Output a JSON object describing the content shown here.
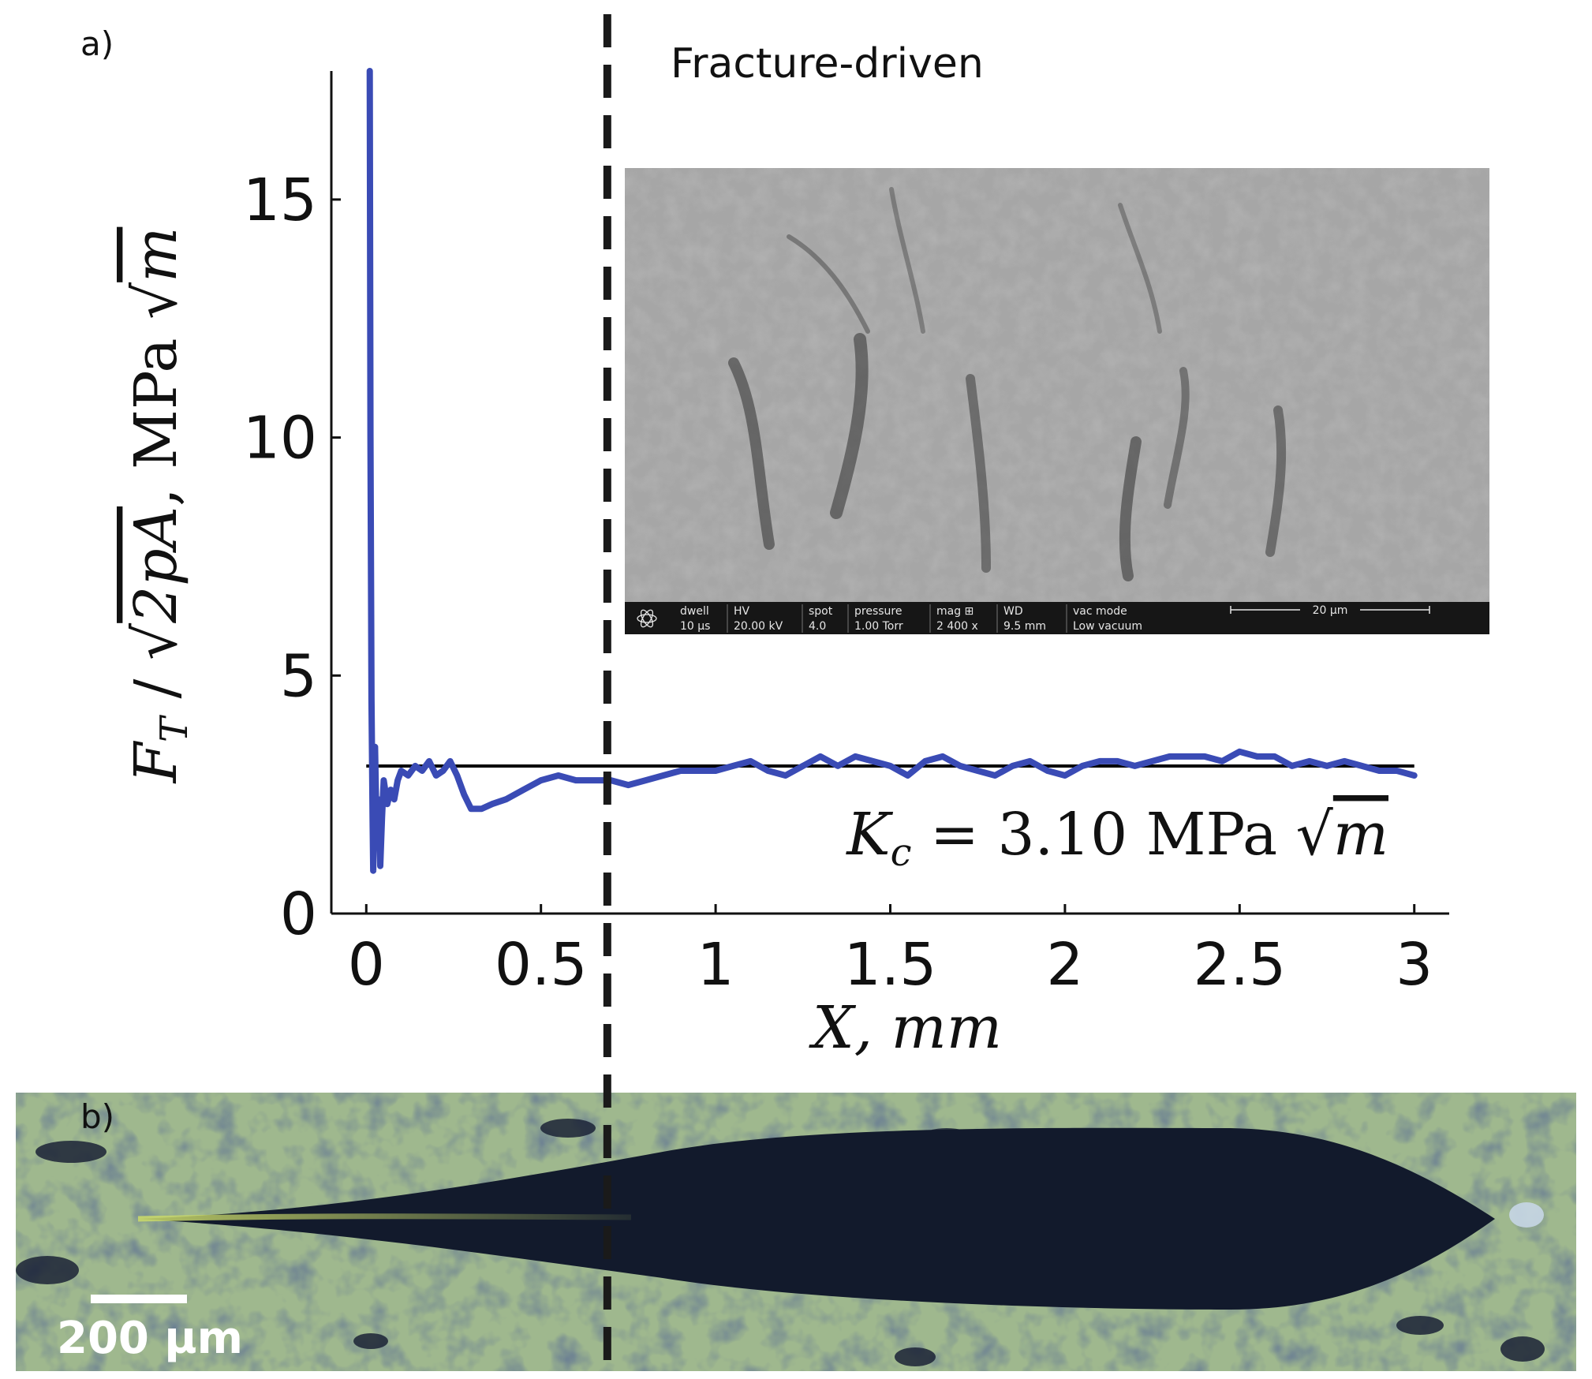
{
  "panel_a_label": "a)",
  "panel_b_label": "b)",
  "region_label": "Fracture-driven",
  "kc_annotation": {
    "symbol": "K",
    "subscript": "c",
    "rest": " = 3.10 MPa ",
    "sqrt_arg": "m"
  },
  "ylabel": {
    "F": "F",
    "sub": "T",
    "slash": " / ",
    "sqrt_arg": "2pA",
    "unit": ", MPa ",
    "unit_sqrt_arg": "m"
  },
  "xlabel": "X, mm",
  "sem_inset": {
    "fields": [
      {
        "label": "dwell",
        "value": "10 µs"
      },
      {
        "label": "HV",
        "value": "20.00 kV"
      },
      {
        "label": "spot",
        "value": "4.0"
      },
      {
        "label": "pressure",
        "value": "1.00 Torr"
      },
      {
        "label": "mag ⊞",
        "value": "2 400 x"
      },
      {
        "label": "WD",
        "value": "9.5 mm"
      },
      {
        "label": "vac mode",
        "value": "Low vacuum"
      }
    ],
    "scale_label": "20 µm"
  },
  "micrograph_scale": "200 µm",
  "colors": {
    "series": "#3a4bb5",
    "reference": "#000000",
    "axis": "#111111",
    "divider": "#1a1a1a"
  },
  "chart_data": {
    "type": "line",
    "xlabel": "X, mm",
    "ylabel": "F_T / √(2pA), MPa √m",
    "xlim": [
      -0.1,
      3.1
    ],
    "ylim": [
      0,
      17.7
    ],
    "xticks": [
      0,
      0.5,
      1,
      1.5,
      2,
      2.5,
      3
    ],
    "xtick_labels": [
      "0",
      "0.5",
      "1",
      "1.5",
      "2",
      "2.5",
      "3"
    ],
    "yticks": [
      0,
      5,
      10,
      15
    ],
    "ytick_labels": [
      "0",
      "5",
      "10",
      "15"
    ],
    "grid": false,
    "divider_x": 0.69,
    "reference_line": {
      "y": 3.1,
      "x_range": [
        0,
        3
      ]
    },
    "series": [
      {
        "x": [
          0.01,
          0.012,
          0.015,
          0.018,
          0.02,
          0.025,
          0.03,
          0.035,
          0.04,
          0.045,
          0.05,
          0.06,
          0.07,
          0.08,
          0.09,
          0.1,
          0.12,
          0.14,
          0.16,
          0.18,
          0.2,
          0.22,
          0.24,
          0.26,
          0.28,
          0.3,
          0.33,
          0.36,
          0.4,
          0.45,
          0.5,
          0.55,
          0.6,
          0.65,
          0.7,
          0.75,
          0.8,
          0.85,
          0.9,
          0.95,
          1.0,
          1.05,
          1.1,
          1.15,
          1.2,
          1.25,
          1.3,
          1.35,
          1.4,
          1.45,
          1.5,
          1.55,
          1.6,
          1.65,
          1.7,
          1.75,
          1.8,
          1.85,
          1.9,
          1.95,
          2.0,
          2.05,
          2.1,
          2.15,
          2.2,
          2.25,
          2.3,
          2.35,
          2.4,
          2.45,
          2.5,
          2.55,
          2.6,
          2.65,
          2.7,
          2.75,
          2.8,
          2.85,
          2.9,
          2.95,
          3.0
        ],
        "y": [
          17.7,
          10.0,
          4.5,
          2.0,
          0.9,
          3.5,
          1.5,
          2.4,
          1.0,
          2.0,
          2.8,
          2.3,
          2.6,
          2.4,
          2.8,
          3.0,
          2.9,
          3.1,
          3.0,
          3.2,
          2.9,
          3.0,
          3.2,
          2.9,
          2.5,
          2.2,
          2.2,
          2.3,
          2.4,
          2.6,
          2.8,
          2.9,
          2.8,
          2.8,
          2.8,
          2.7,
          2.8,
          2.9,
          3.0,
          3.0,
          3.0,
          3.1,
          3.2,
          3.0,
          2.9,
          3.1,
          3.3,
          3.1,
          3.3,
          3.2,
          3.1,
          2.9,
          3.2,
          3.3,
          3.1,
          3.0,
          2.9,
          3.1,
          3.2,
          3.0,
          2.9,
          3.1,
          3.2,
          3.2,
          3.1,
          3.2,
          3.3,
          3.3,
          3.3,
          3.2,
          3.4,
          3.3,
          3.3,
          3.1,
          3.2,
          3.1,
          3.2,
          3.1,
          3.0,
          3.0,
          2.9
        ]
      }
    ]
  }
}
